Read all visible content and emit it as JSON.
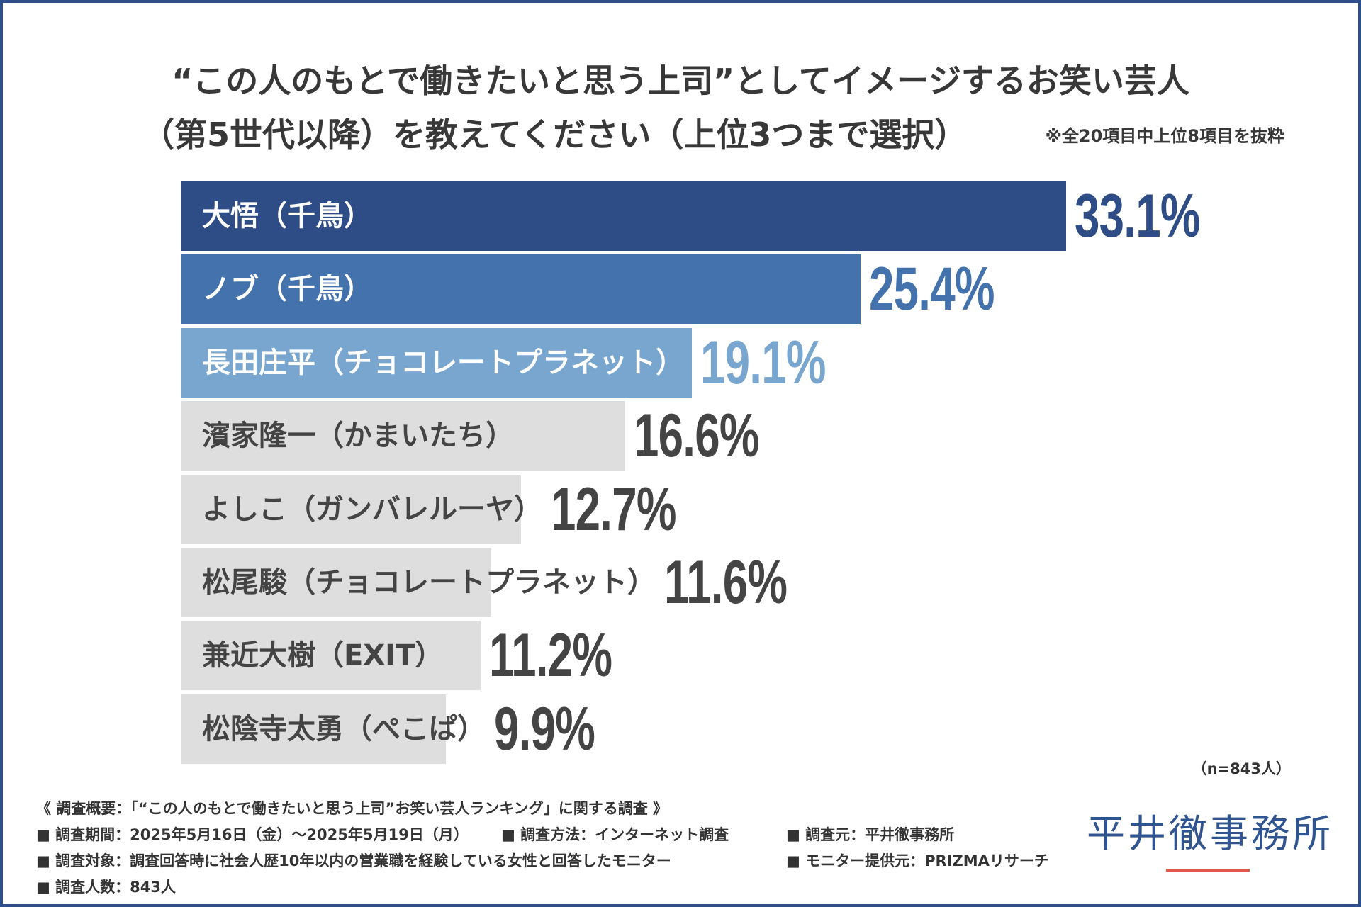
{
  "chart_data": {
    "type": "bar",
    "orientation": "horizontal",
    "title_lines": [
      "“この人のもとで働きたいと思う上司”としてイメージするお笑い芸人",
      "（第5世代以降）を教えてください（上位3つまで選択）"
    ],
    "note": "※全20項目中上位8項目を抜粋",
    "categories": [
      "大悟（千鳥）",
      "ノブ（千鳥）",
      "長田庄平（チョコレートプラネット）",
      "濱家隆一（かまいたち）",
      "よしこ（ガンバレルーヤ）",
      "松尾駿（チョコレートプラネット）",
      "兼近大樹（EXIT）",
      "松陰寺太勇（ぺこぱ）"
    ],
    "values": [
      33.1,
      25.4,
      19.1,
      16.6,
      12.7,
      11.6,
      11.2,
      9.9
    ],
    "value_labels": [
      "33.1%",
      "25.4%",
      "19.1%",
      "16.6%",
      "12.7%",
      "11.6%",
      "11.2%",
      "9.9%"
    ],
    "bar_colors": [
      "#2e4d86",
      "#4472ad",
      "#79a6cf",
      "#dedede",
      "#dedede",
      "#dedede",
      "#dedede",
      "#dedede"
    ],
    "label_colors": [
      "#ffffff",
      "#ffffff",
      "#ffffff",
      "#444444",
      "#444444",
      "#444444",
      "#444444",
      "#444444"
    ],
    "value_colors": [
      "#2e4d86",
      "#4472ad",
      "#79a6cf",
      "#444444",
      "#444444",
      "#444444",
      "#444444",
      "#444444"
    ],
    "annotation": "（n=843人）"
  },
  "survey": {
    "heading": "《 調査概要：「“この人のもとで働きたいと思う上司”お笑い芸人ランキング」に関する調査 》",
    "period": "■ 調査期間：2025年5月16日（金）～2025年5月19日（月）",
    "method": "■ 調査方法：インターネット調査",
    "organizer": "■ 調査元：平井徹事務所",
    "target": "■ 調査対象：調査回答時に社会人歴10年以内の営業職を経験している女性と回答したモニター",
    "panel_provider": "■ モニター提供元：PRIZMAリサーチ",
    "respondents": "■ 調査人数：843人"
  },
  "logo": {
    "text": "平井徹事務所",
    "color": "#2f5490",
    "underline_color": "#e2574c"
  },
  "colors": {
    "frame_border": "#2f4f8a",
    "title_text": "#383838",
    "body_text": "#333333"
  }
}
